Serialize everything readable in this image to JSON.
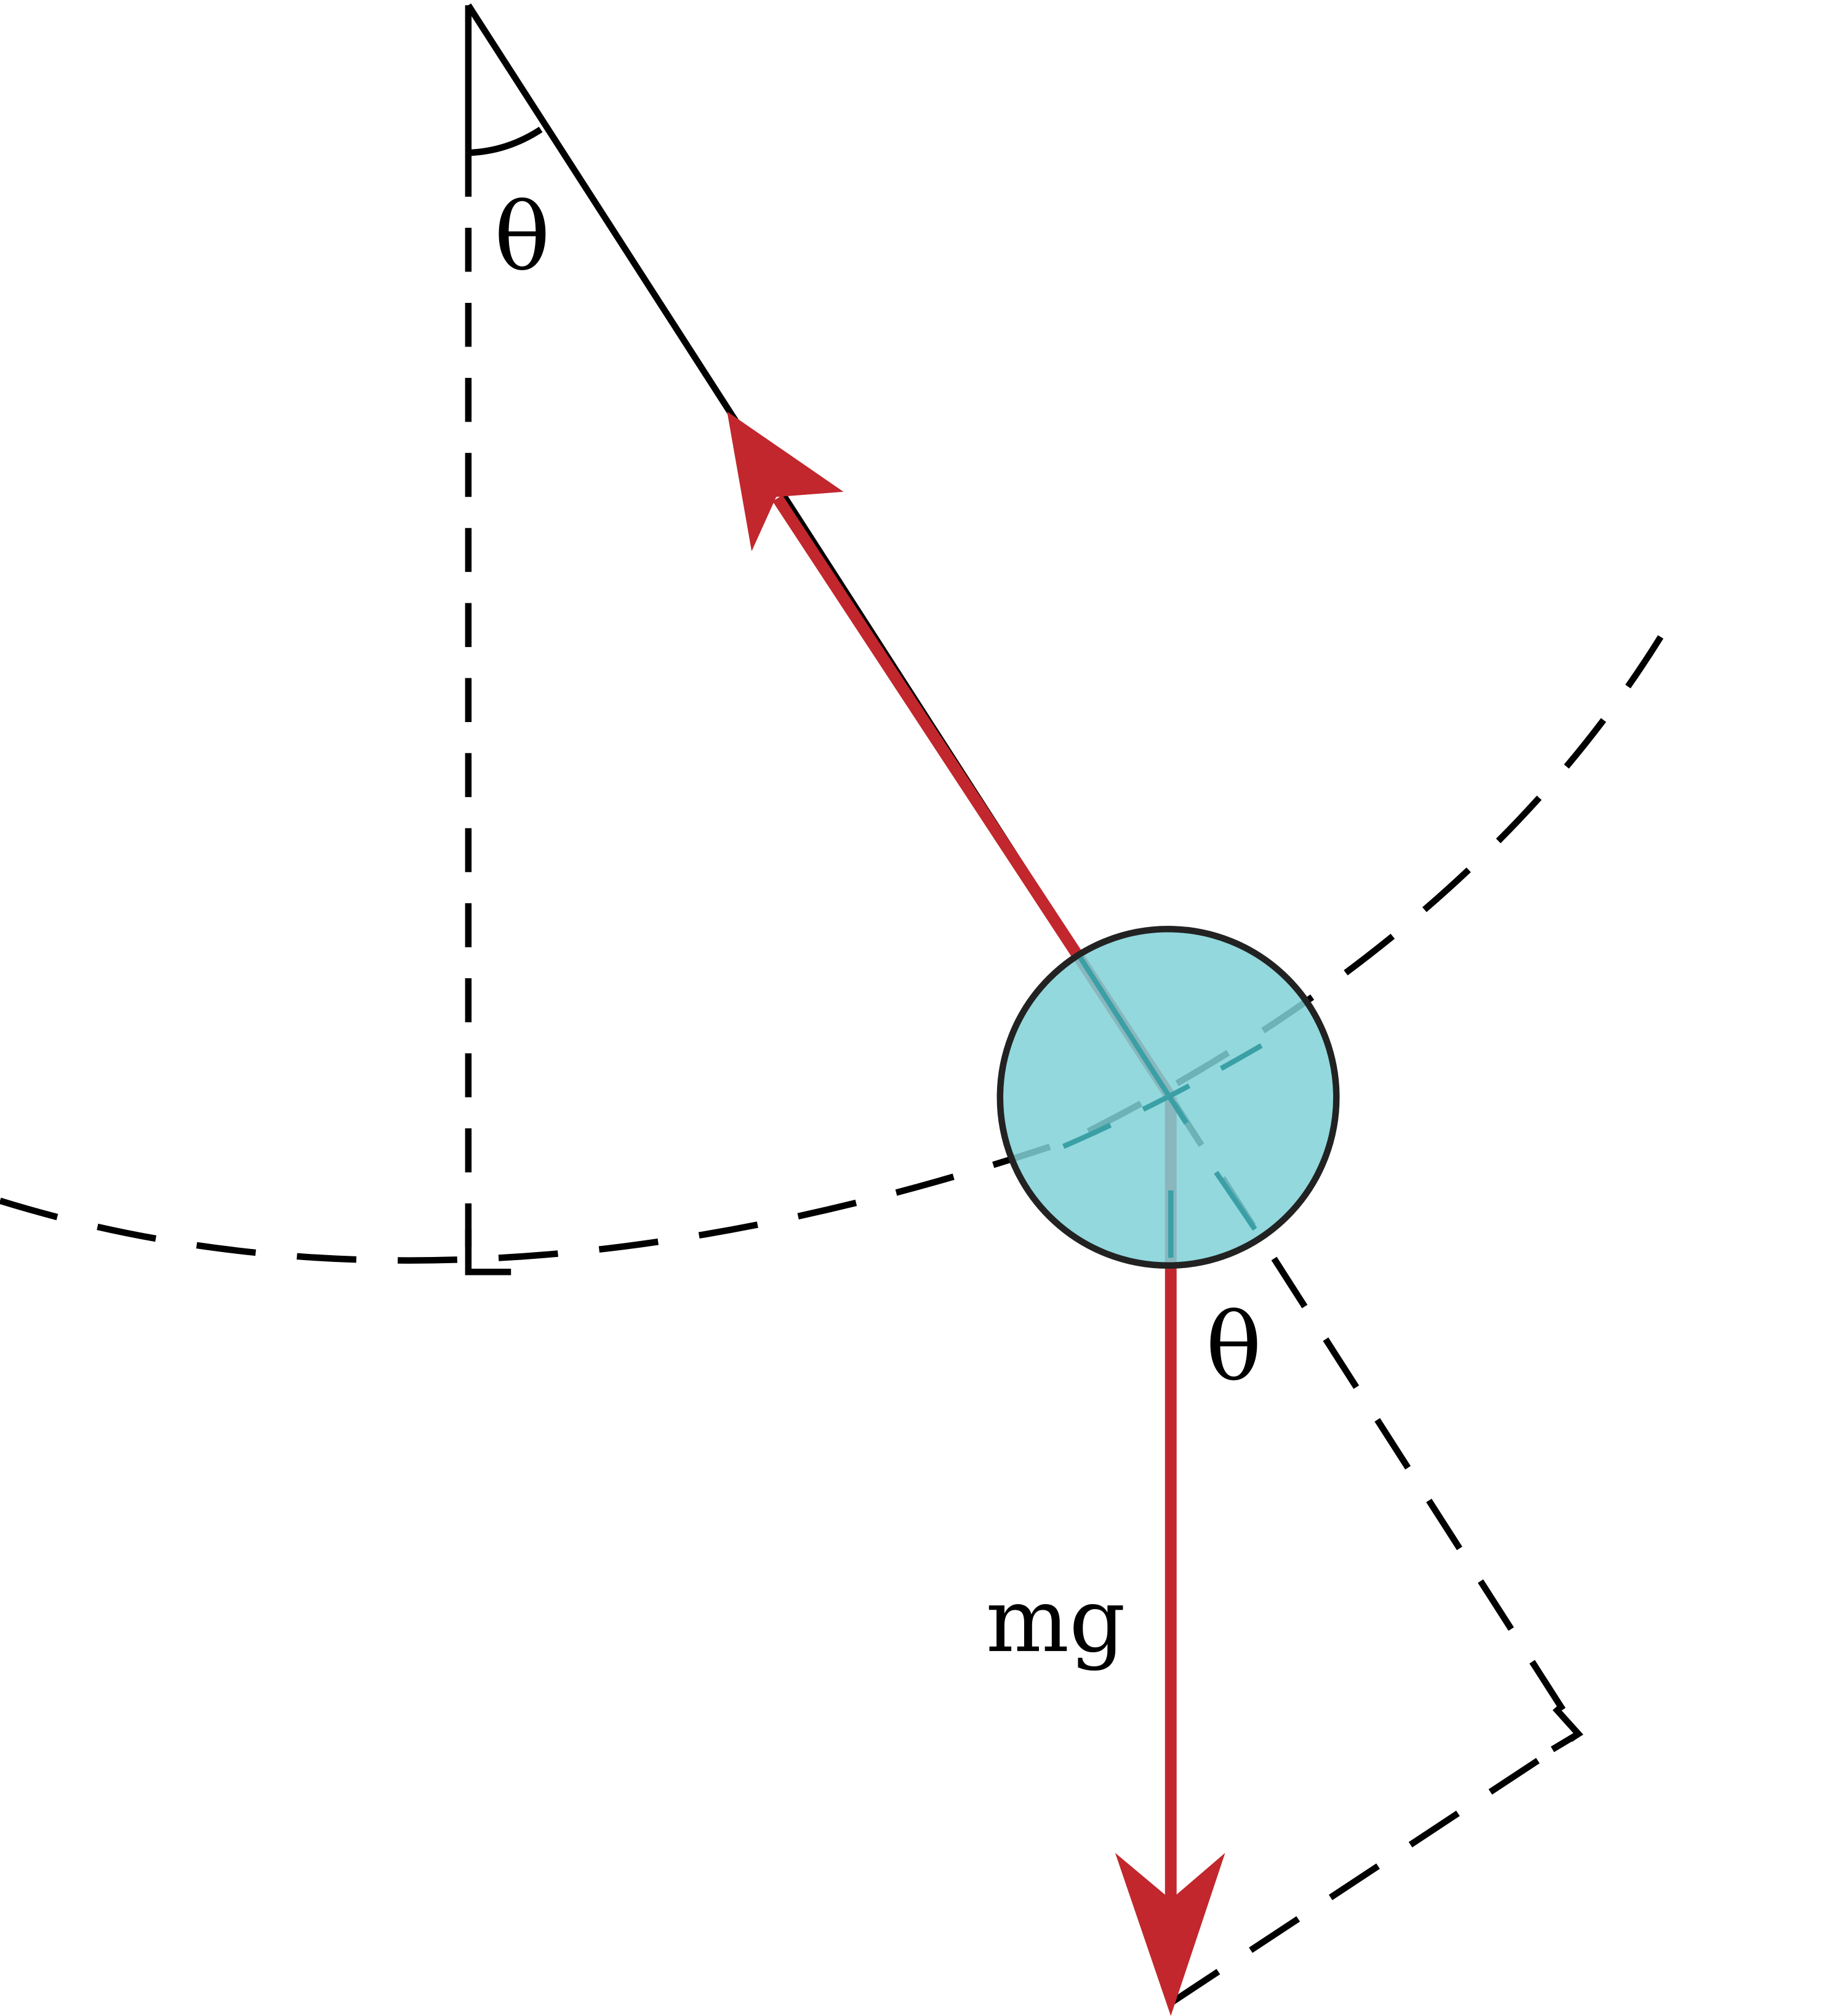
{
  "labels": {
    "theta_top": "θ",
    "theta_bottom": "θ",
    "weight": "mg"
  },
  "colors": {
    "line": "#000000",
    "force_arrow": "#c1272d",
    "bob_fill": "#7fd1d7",
    "bob_stroke": "#222222",
    "background": "#ffffff"
  }
}
